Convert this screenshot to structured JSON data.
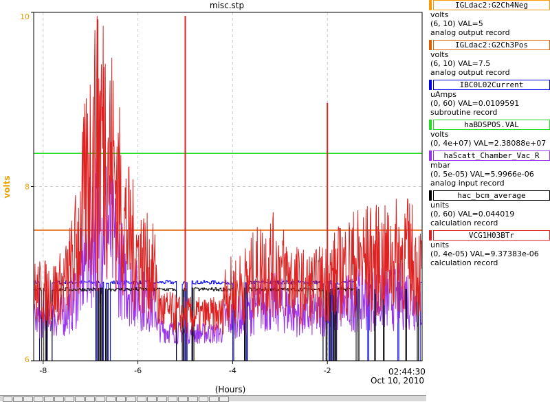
{
  "chart_data": {
    "type": "line",
    "title": "misc.stp",
    "xlabel": "(Hours)",
    "ylabel": "volts",
    "xlim": [
      -8.2,
      0
    ],
    "ylim": [
      6,
      10
    ],
    "grid": true,
    "x_ticks": [
      "-8",
      "-6",
      "-4",
      "-2"
    ],
    "x_end_time": "02:44:30",
    "x_end_date": "Oct 10, 2010",
    "y_ticks": [
      "10",
      "8",
      "6"
    ],
    "colors": {
      "title": "#000000",
      "ylabel": "#e8a000",
      "ytick": "#e8a000"
    },
    "series": [
      {
        "name": "IGLdac2:G2Ch4Neg",
        "color": "#ff9900",
        "kind": "constant",
        "value": 5,
        "range": [
          6,
          10
        ]
      },
      {
        "name": "IGLdac2:G2Ch3Pos",
        "color": "#e06000",
        "kind": "constant",
        "value": 7.5,
        "range": [
          6,
          10
        ]
      },
      {
        "name": "IBC0L02Current",
        "color": "#0000ee",
        "kind": "current",
        "range": [
          0,
          60
        ]
      },
      {
        "name": "haBDSPOS.VAL",
        "color": "#22dd22",
        "kind": "constant",
        "value": 23808800.0,
        "range": [
          0,
          40000000.0
        ]
      },
      {
        "name": "haScatt_Chamber_Vac_R",
        "color": "#9933ee",
        "kind": "noise",
        "range": [
          0,
          5e-05
        ]
      },
      {
        "name": "hac_bcm_average",
        "color": "#000000",
        "kind": "current",
        "range": [
          0,
          60
        ]
      },
      {
        "name": "VCG1H03BTr",
        "color": "#dd2222",
        "kind": "noise",
        "range": [
          0,
          4e-05
        ]
      }
    ]
  },
  "legend": {
    "entries": [
      {
        "name": "IGLdac2:G2Ch4Neg",
        "color": "#ff9900",
        "unit": "volts",
        "range_val": "(6, 10)  VAL=5",
        "rtype": "analog output record"
      },
      {
        "name": "IGLdac2:G2Ch3Pos",
        "color": "#e06000",
        "unit": "volts",
        "range_val": "(6, 10) VAL=7.5",
        "rtype": "analog output record"
      },
      {
        "name": "IBC0L02Current",
        "color": "#0000ee",
        "unit": "uAmps",
        "range_val": "(0, 60) VAL=0.0109591",
        "rtype": "subroutine record"
      },
      {
        "name": "haBDSPOS.VAL",
        "color": "#22dd22",
        "unit": "volts",
        "range_val": "(0, 4e+07) VAL=2.38088e+07",
        "rtype": ""
      },
      {
        "name": "haScatt_Chamber_Vac_R",
        "color": "#9933ee",
        "unit": "mbar",
        "range_val": "(0, 5e-05) VAL=5.9966e-06",
        "rtype": "analog input record"
      },
      {
        "name": "hac_bcm_average",
        "color": "#000000",
        "unit": "units",
        "range_val": "(0, 60) VAL=0.044019",
        "rtype": "calculation record"
      },
      {
        "name": "VCG1H03BTr",
        "color": "#dd2222",
        "unit": "units",
        "range_val": "(0, 4e-05) VAL=9.37383e-06",
        "rtype": "calculation record"
      }
    ]
  }
}
